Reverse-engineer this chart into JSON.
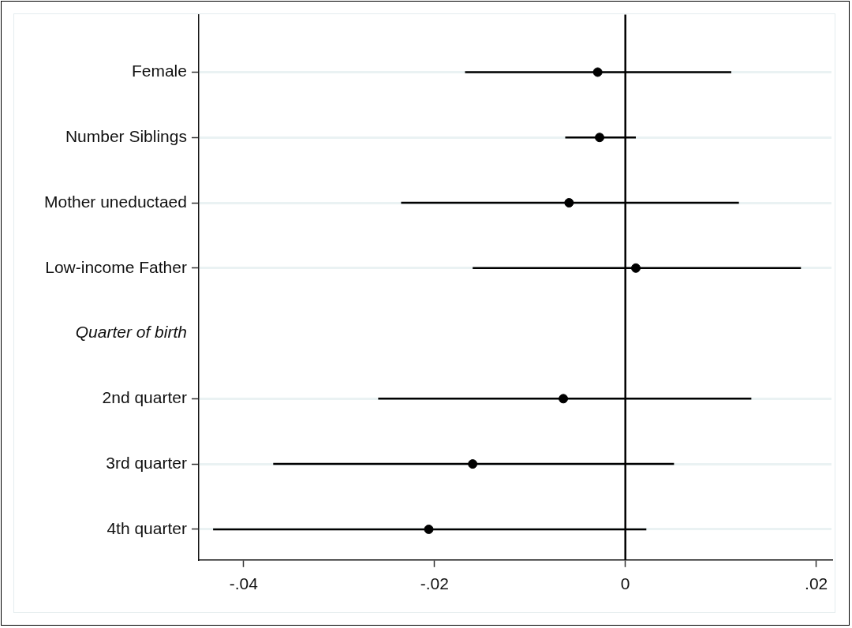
{
  "chart_data": {
    "type": "scatter",
    "orientation": "horizontal",
    "categories": [
      "Female",
      "Number Siblings",
      "Mother uneductaed",
      "Low-income Father",
      "Quarter of birth",
      "2nd quarter",
      "3rd quarter",
      "4th quarter"
    ],
    "values": [
      -0.0029,
      -0.0027,
      -0.0059,
      0.0011,
      null,
      -0.0065,
      -0.016,
      -0.0206
    ],
    "errors": [
      [
        -0.0168,
        0.0111
      ],
      [
        -0.0063,
        0.0011
      ],
      [
        -0.0235,
        0.0119
      ],
      [
        -0.016,
        0.0184
      ],
      null,
      [
        -0.0259,
        0.0132
      ],
      [
        -0.0369,
        0.0051
      ],
      [
        -0.0432,
        0.0022
      ]
    ],
    "color": "#000000",
    "marker": "circle",
    "xlim": [
      -0.0447,
      0.0216
    ],
    "xticks": [
      {
        "value": -0.04,
        "label": "-.04"
      },
      {
        "value": -0.02,
        "label": "-.02"
      },
      0,
      {
        "value": 0.02,
        "label": ".02"
      }
    ],
    "ref_lines": [
      {
        "axis": "x",
        "value": 0,
        "color": "#000000"
      }
    ],
    "grid": "y",
    "legend": false
  }
}
